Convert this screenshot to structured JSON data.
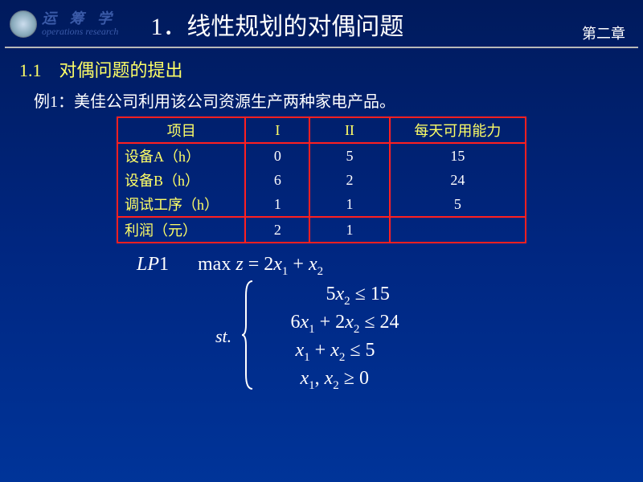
{
  "header": {
    "logo_cn": "运 筹 学",
    "logo_en": "operations research",
    "title": "1．线性规划的对偶问题",
    "chapter": "第二章"
  },
  "section": {
    "heading": "1.1　对偶问题的提出",
    "example": "例1：美佳公司利用该公司资源生产两种家电产品。"
  },
  "table": {
    "columns": [
      "项目",
      "I",
      "II",
      "每天可用能力"
    ],
    "rows": [
      [
        "设备A（h）",
        "0",
        "5",
        "15"
      ],
      [
        "设备B（h）",
        "6",
        "2",
        "24"
      ],
      [
        "调试工序（h）",
        "1",
        "1",
        "5"
      ],
      [
        "利润（元）",
        "2",
        "1",
        ""
      ]
    ],
    "border_color": "#ff2020",
    "header_color": "#ffff66",
    "cell_color": "#ffffff",
    "col_widths": [
      "160px",
      "80px",
      "100px",
      "170px"
    ]
  },
  "math": {
    "lp_label": "LP",
    "lp_num": "1",
    "objective_prefix": "max ",
    "z_eq": "z = 2x",
    "plus": " + x",
    "constraints": [
      {
        "text": "5x₂ ≤ 15"
      },
      {
        "text": "6x₁ + 2x₂ ≤ 24"
      },
      {
        "text": "x₁ + x₂ ≤ 5"
      },
      {
        "text": "x₁, x₂ ≥ 0"
      }
    ],
    "st": "st."
  },
  "style": {
    "background_gradient": [
      "#001a5c",
      "#002680",
      "#003499"
    ],
    "title_color": "#ffffff",
    "section_color": "#ffff66",
    "body_text_color": "#ffffff"
  }
}
